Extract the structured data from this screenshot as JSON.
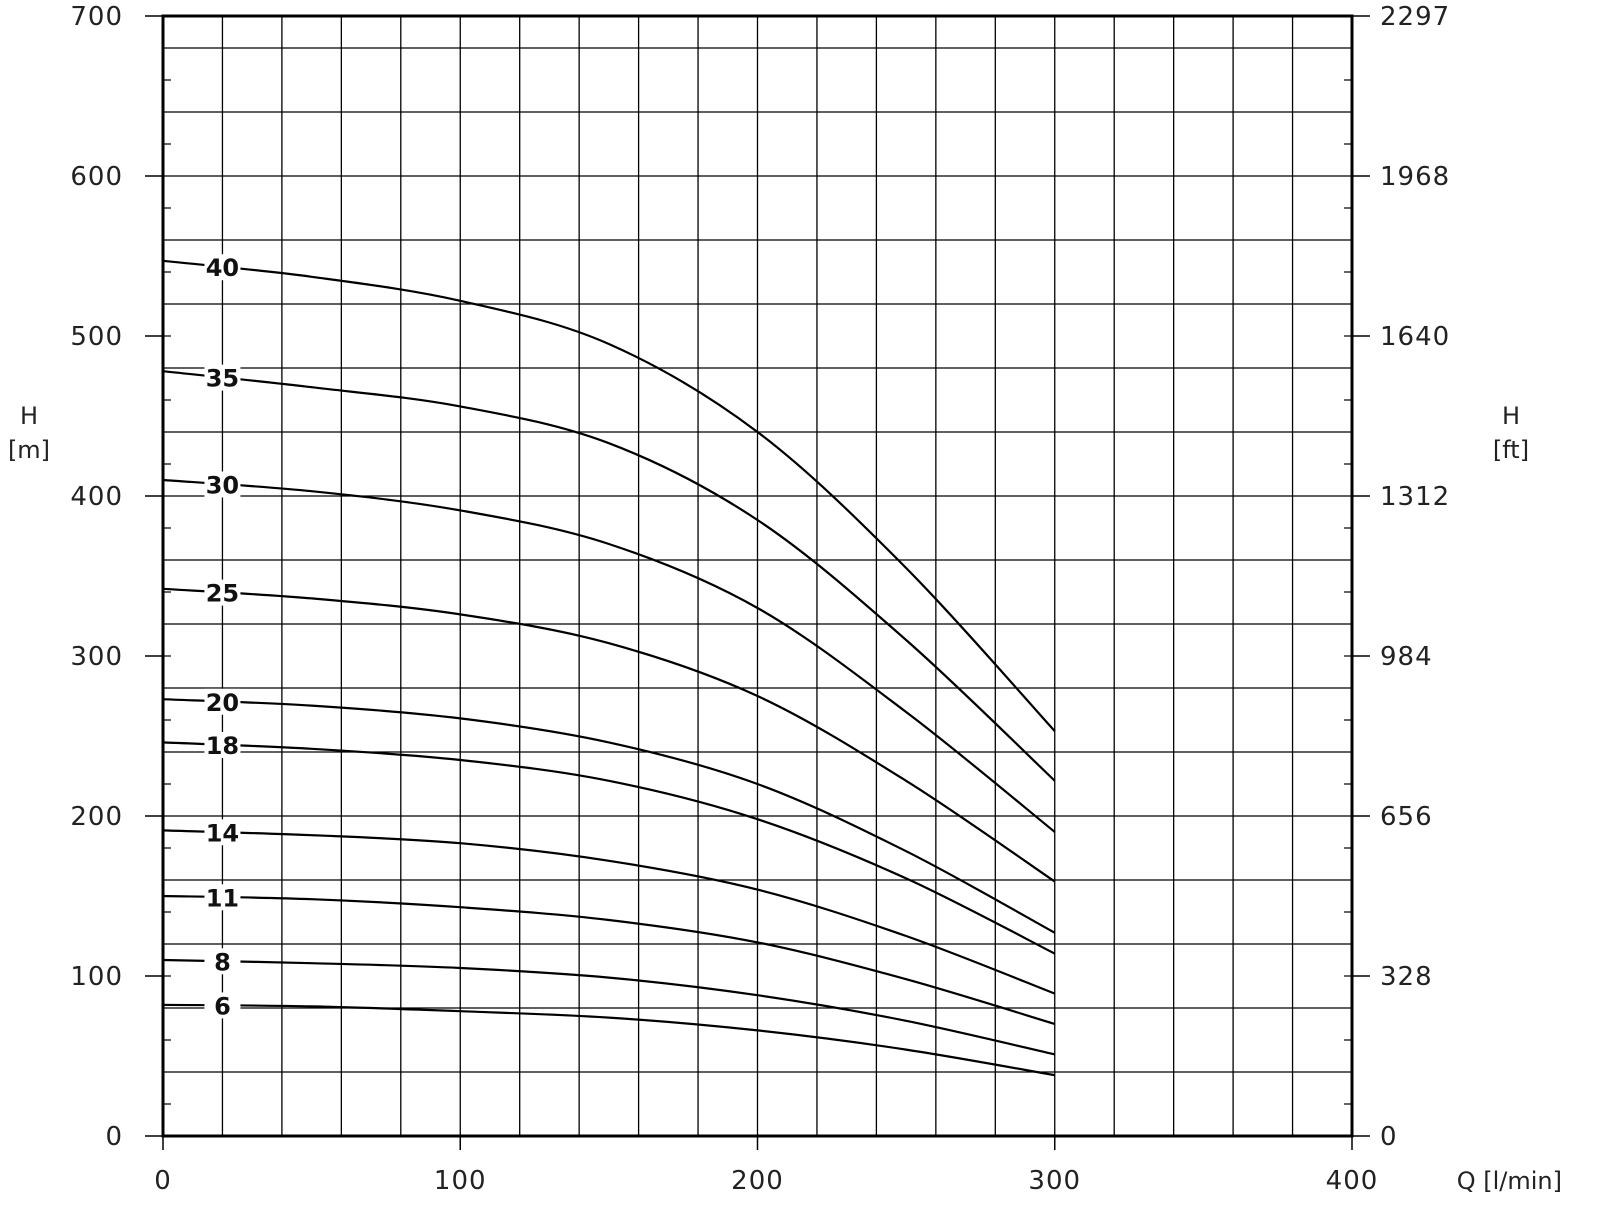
{
  "chart_data": {
    "type": "line",
    "title": "",
    "xlabel": "Q [l/min]",
    "ylabel_left": [
      "H",
      "[m]"
    ],
    "ylabel_right": [
      "H",
      "[ft]"
    ],
    "xlim": [
      0,
      400
    ],
    "ylim": [
      0,
      700
    ],
    "x_ticks": [
      "0",
      "100",
      "200",
      "300",
      "400"
    ],
    "y_ticks_left": [
      "0",
      "100",
      "200",
      "300",
      "400",
      "500",
      "600",
      "700"
    ],
    "y_ticks_right": [
      "0",
      "328",
      "656",
      "984",
      "1312",
      "1640",
      "1968",
      "2297"
    ],
    "grid": true,
    "x": [
      0,
      50,
      100,
      150,
      200,
      250,
      300
    ],
    "series": [
      {
        "name": "40",
        "values": [
          547,
          537,
          522,
          495,
          440,
          355,
          253
        ]
      },
      {
        "name": "35",
        "values": [
          478,
          468,
          456,
          433,
          385,
          310,
          222
        ]
      },
      {
        "name": "30",
        "values": [
          410,
          403,
          391,
          370,
          330,
          265,
          190
        ]
      },
      {
        "name": "25",
        "values": [
          342,
          336,
          326,
          308,
          275,
          222,
          159
        ]
      },
      {
        "name": "20",
        "values": [
          273,
          269,
          261,
          246,
          220,
          178,
          127
        ]
      },
      {
        "name": "18",
        "values": [
          246,
          242,
          235,
          222,
          198,
          161,
          114
        ]
      },
      {
        "name": "14",
        "values": [
          191,
          188,
          183,
          172,
          154,
          125,
          89
        ]
      },
      {
        "name": "11",
        "values": [
          150,
          148,
          143,
          135,
          121,
          98,
          70
        ]
      },
      {
        "name": "8",
        "values": [
          110,
          108,
          105,
          99,
          88,
          72,
          51
        ]
      },
      {
        "name": "6",
        "values": [
          82,
          81,
          78,
          74,
          66,
          54,
          38
        ]
      }
    ]
  }
}
